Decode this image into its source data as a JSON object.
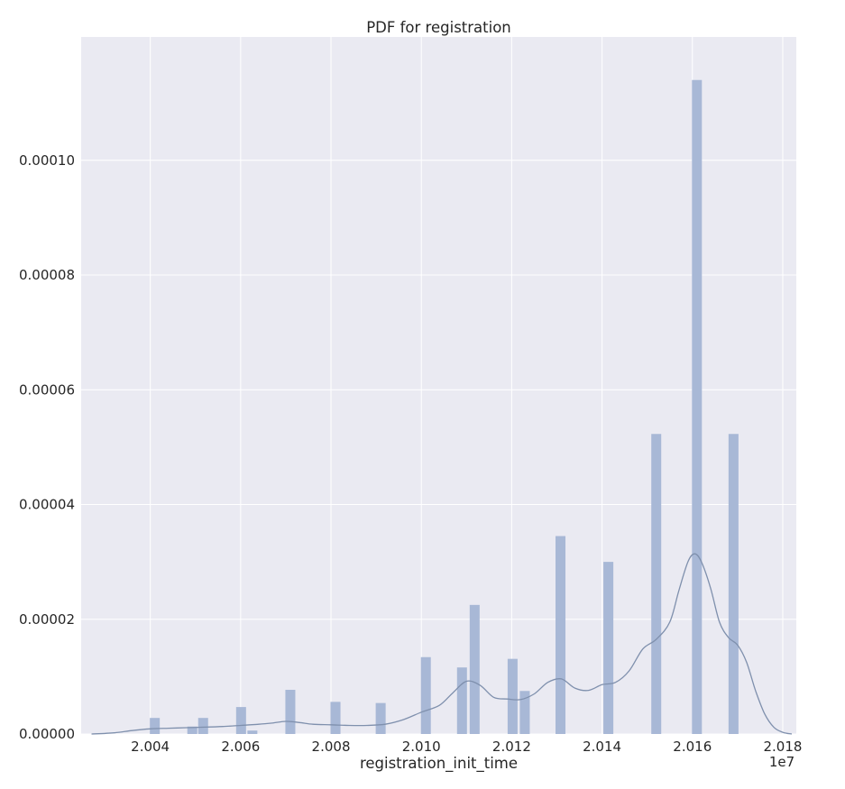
{
  "chart_data": {
    "type": "bar",
    "title": "PDF for registration",
    "xlabel": "registration_init_time",
    "ylabel": "",
    "x_offset_label": "1e7",
    "xlim": [
      20024700,
      20183000
    ],
    "ylim": [
      0,
      0.0001215
    ],
    "x_ticks": [
      {
        "value": 20040000,
        "label": "2.004"
      },
      {
        "value": 20060000,
        "label": "2.006"
      },
      {
        "value": 20080000,
        "label": "2.008"
      },
      {
        "value": 20100000,
        "label": "2.010"
      },
      {
        "value": 20120000,
        "label": "2.012"
      },
      {
        "value": 20140000,
        "label": "2.014"
      },
      {
        "value": 20160000,
        "label": "2.016"
      },
      {
        "value": 20180000,
        "label": "2.018"
      }
    ],
    "y_ticks": [
      {
        "value": 0,
        "label": "0.00000"
      },
      {
        "value": 2e-05,
        "label": "0.00002"
      },
      {
        "value": 4e-05,
        "label": "0.00004"
      },
      {
        "value": 6e-05,
        "label": "0.00006"
      },
      {
        "value": 8e-05,
        "label": "0.00008"
      },
      {
        "value": 0.0001,
        "label": "0.00010"
      }
    ],
    "grid": true,
    "colors": {
      "background": "#eaeaf2",
      "grid": "#ffffff",
      "bar": "#a8b8d6",
      "kde_line": "#7f90ad",
      "text": "#262626"
    },
    "histogram": {
      "bins": [
        {
          "x_start": 20039900,
          "x_end": 20042100,
          "value": 2.8e-06
        },
        {
          "x_start": 20048200,
          "x_end": 20050400,
          "value": 1.3e-06
        },
        {
          "x_start": 20050600,
          "x_end": 20052800,
          "value": 2.8e-06
        },
        {
          "x_start": 20059000,
          "x_end": 20061200,
          "value": 4.7e-06
        },
        {
          "x_start": 20061500,
          "x_end": 20063700,
          "value": 6e-07
        },
        {
          "x_start": 20069900,
          "x_end": 20072100,
          "value": 7.7e-06
        },
        {
          "x_start": 20079900,
          "x_end": 20082100,
          "value": 5.6e-06
        },
        {
          "x_start": 20089900,
          "x_end": 20092100,
          "value": 5.4e-06
        },
        {
          "x_start": 20099900,
          "x_end": 20102100,
          "value": 1.34e-05
        },
        {
          "x_start": 20107900,
          "x_end": 20110100,
          "value": 1.16e-05
        },
        {
          "x_start": 20110700,
          "x_end": 20112900,
          "value": 2.25e-05
        },
        {
          "x_start": 20119100,
          "x_end": 20121300,
          "value": 1.31e-05
        },
        {
          "x_start": 20121800,
          "x_end": 20124000,
          "value": 7.5e-06
        },
        {
          "x_start": 20129700,
          "x_end": 20131900,
          "value": 3.45e-05
        },
        {
          "x_start": 20140300,
          "x_end": 20142500,
          "value": 3e-05
        },
        {
          "x_start": 20150900,
          "x_end": 20153100,
          "value": 5.23e-05
        },
        {
          "x_start": 20159900,
          "x_end": 20162100,
          "value": 0.000114
        },
        {
          "x_start": 20168000,
          "x_end": 20170200,
          "value": 5.23e-05
        }
      ]
    },
    "kde": {
      "x": [
        20027000,
        20032000,
        20036000,
        20040000,
        20044000,
        20048000,
        20052000,
        20056000,
        20060000,
        20064000,
        20067000,
        20070000,
        20073000,
        20076000,
        20080000,
        20084000,
        20088000,
        20092000,
        20096000,
        20100000,
        20104000,
        20107000,
        20110000,
        20113000,
        20116000,
        20119000,
        20122000,
        20125000,
        20128000,
        20131000,
        20134000,
        20137000,
        20140000,
        20143000,
        20146000,
        20149000,
        20152000,
        20155000,
        20157000,
        20159000,
        20160500,
        20162000,
        20164000,
        20166000,
        20168000,
        20170000,
        20172000,
        20174000,
        20176000,
        20178000,
        20180000,
        20182000
      ],
      "y": [
        0.0,
        2e-07,
        6e-07,
        9e-07,
        1e-06,
        1.1e-06,
        1.2e-06,
        1.3e-06,
        1.5e-06,
        1.7e-06,
        1.9e-06,
        2.2e-06,
        2e-06,
        1.7e-06,
        1.6e-06,
        1.5e-06,
        1.5e-06,
        1.7e-06,
        2.5e-06,
        3.8e-06,
        5e-06,
        7.2e-06,
        9.2e-06,
        8.5e-06,
        6.4e-06,
        6.1e-06,
        6e-06,
        7e-06,
        9e-06,
        9.6e-06,
        8e-06,
        7.6e-06,
        8.6e-06,
        9e-06,
        1.1e-05,
        1.48e-05,
        1.65e-05,
        1.95e-05,
        2.5e-05,
        3e-05,
        3.14e-05,
        3e-05,
        2.55e-05,
        1.95e-05,
        1.68e-05,
        1.55e-05,
        1.25e-05,
        7.5e-06,
        3.5e-06,
        1.2e-06,
        3e-07,
        0.0
      ]
    }
  }
}
